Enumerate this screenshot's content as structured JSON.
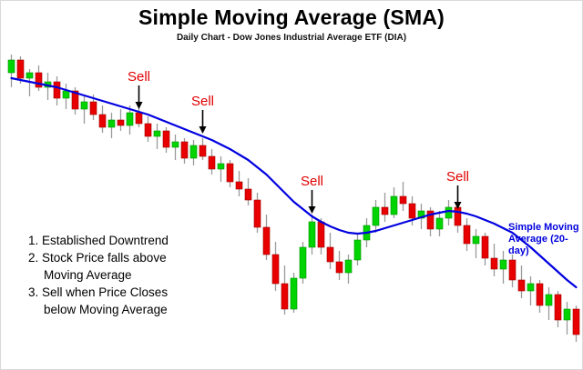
{
  "title": "Simple Moving Average (SMA)",
  "subtitle": "Daily Chart - Dow Jones Industrial Average ETF (DIA)",
  "notes": [
    "1. Established Downtrend",
    "2. Stock Price falls above",
    "Moving Average",
    "3. Sell when Price Closes",
    "below Moving Average"
  ],
  "sma_label": [
    "Simple Moving",
    "Average (20-day)"
  ],
  "colors": {
    "up": "#00d400",
    "up_edge": "#008f00",
    "down": "#e80000",
    "down_edge": "#9e0000",
    "wick": "#9a9a9a",
    "sma": "#0000e0",
    "sell": "#e00000",
    "arrow": "#000000"
  },
  "chart_data": {
    "type": "candlestick",
    "title": "Simple Moving Average (SMA)",
    "subtitle": "Daily Chart - Dow Jones Industrial Average ETF (DIA)",
    "axes_visible": false,
    "x_unit": "trading day",
    "y_unit": "price (relative units, no axis labels shown)",
    "ylim": [
      0,
      175
    ],
    "candles": [
      [
        158,
        168,
        150,
        165
      ],
      [
        165,
        167,
        152,
        155
      ],
      [
        155,
        160,
        145,
        158
      ],
      [
        158,
        162,
        148,
        150
      ],
      [
        150,
        158,
        143,
        153
      ],
      [
        153,
        156,
        140,
        144
      ],
      [
        144,
        152,
        138,
        148
      ],
      [
        148,
        150,
        135,
        138
      ],
      [
        138,
        145,
        130,
        142
      ],
      [
        142,
        146,
        132,
        135
      ],
      [
        135,
        140,
        125,
        128
      ],
      [
        128,
        136,
        122,
        132
      ],
      [
        132,
        138,
        126,
        129
      ],
      [
        129,
        140,
        124,
        136
      ],
      [
        136,
        142,
        128,
        130
      ],
      [
        130,
        134,
        120,
        123
      ],
      [
        123,
        130,
        116,
        126
      ],
      [
        126,
        128,
        114,
        117
      ],
      [
        117,
        124,
        110,
        120
      ],
      [
        120,
        122,
        108,
        111
      ],
      [
        111,
        121,
        107,
        118
      ],
      [
        118,
        122,
        110,
        112
      ],
      [
        112,
        116,
        102,
        105
      ],
      [
        105,
        112,
        98,
        108
      ],
      [
        108,
        110,
        95,
        98
      ],
      [
        98,
        104,
        90,
        94
      ],
      [
        94,
        100,
        85,
        88
      ],
      [
        88,
        92,
        70,
        73
      ],
      [
        73,
        80,
        55,
        58
      ],
      [
        58,
        65,
        38,
        42
      ],
      [
        42,
        52,
        25,
        28
      ],
      [
        28,
        48,
        26,
        45
      ],
      [
        45,
        65,
        42,
        62
      ],
      [
        62,
        80,
        58,
        76
      ],
      [
        76,
        78,
        58,
        62
      ],
      [
        62,
        70,
        50,
        54
      ],
      [
        54,
        60,
        44,
        48
      ],
      [
        48,
        58,
        42,
        55
      ],
      [
        55,
        70,
        52,
        66
      ],
      [
        66,
        78,
        62,
        74
      ],
      [
        74,
        88,
        70,
        84
      ],
      [
        84,
        92,
        76,
        80
      ],
      [
        80,
        95,
        78,
        90
      ],
      [
        90,
        98,
        82,
        86
      ],
      [
        86,
        90,
        74,
        78
      ],
      [
        78,
        86,
        72,
        82
      ],
      [
        82,
        84,
        68,
        72
      ],
      [
        72,
        82,
        68,
        78
      ],
      [
        78,
        88,
        74,
        84
      ],
      [
        84,
        86,
        70,
        74
      ],
      [
        74,
        78,
        60,
        64
      ],
      [
        64,
        72,
        56,
        68
      ],
      [
        68,
        70,
        52,
        56
      ],
      [
        56,
        64,
        46,
        50
      ],
      [
        50,
        60,
        42,
        55
      ],
      [
        55,
        58,
        40,
        44
      ],
      [
        44,
        52,
        34,
        38
      ],
      [
        38,
        46,
        30,
        42
      ],
      [
        42,
        44,
        26,
        30
      ],
      [
        30,
        40,
        22,
        36
      ],
      [
        36,
        38,
        18,
        22
      ],
      [
        22,
        32,
        14,
        28
      ],
      [
        28,
        30,
        10,
        14
      ]
    ],
    "sma": [
      155,
      154,
      153,
      152,
      151,
      150,
      148.5,
      147,
      145.5,
      144,
      142.5,
      141,
      139.5,
      138,
      136.5,
      135,
      133,
      131,
      129,
      127,
      125,
      123,
      121,
      118.5,
      116,
      113,
      110,
      106,
      102,
      97,
      92,
      87,
      83,
      79,
      76,
      73.5,
      71.5,
      70,
      69.5,
      70,
      71,
      72.5,
      74,
      75.5,
      77,
      78.5,
      80,
      81,
      82,
      81.5,
      80.5,
      79,
      77,
      75,
      72.5,
      70,
      66,
      62,
      57.5,
      53,
      48.5,
      44,
      40
    ],
    "sell_signals": [
      {
        "index": 14,
        "label": "Sell"
      },
      {
        "index": 21,
        "label": "Sell"
      },
      {
        "index": 33,
        "label": "Sell"
      },
      {
        "index": 49,
        "label": "Sell"
      }
    ],
    "legend": [
      {
        "name": "Simple Moving Average (20-day)",
        "color": "#0000e0"
      }
    ]
  }
}
